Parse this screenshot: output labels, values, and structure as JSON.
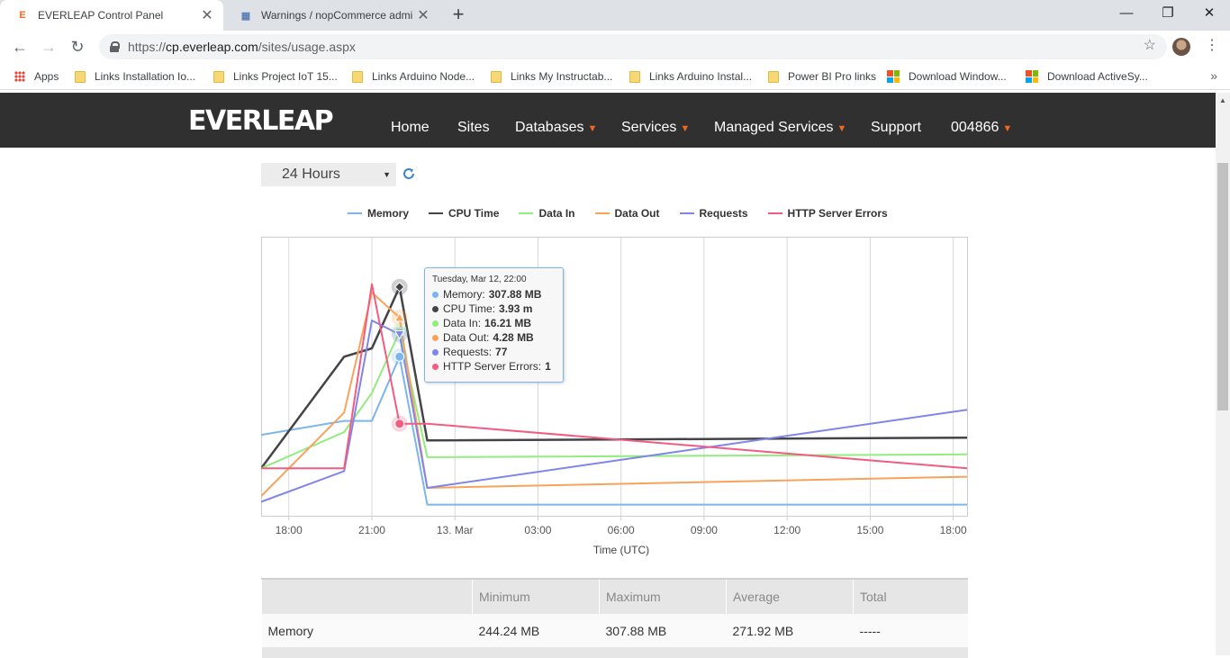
{
  "browser": {
    "tabs": [
      {
        "title": "EVERLEAP Control Panel",
        "active": true
      },
      {
        "title": "Warnings / nopCommerce admin",
        "active": false
      }
    ],
    "url": {
      "scheme": "https://",
      "host": "cp.everleap.com",
      "path": "/sites/usage.aspx"
    },
    "bookmarks": [
      {
        "label": "Apps",
        "icon": "apps-grid-icon"
      },
      {
        "label": "Links Installation Io...",
        "icon": "folder-icon"
      },
      {
        "label": "Links Project IoT 15...",
        "icon": "folder-icon"
      },
      {
        "label": "Links Arduino Node...",
        "icon": "folder-icon"
      },
      {
        "label": "Links My Instructab...",
        "icon": "folder-icon"
      },
      {
        "label": "Links Arduino Instal...",
        "icon": "folder-icon"
      },
      {
        "label": "Power BI Pro links",
        "icon": "folder-icon"
      },
      {
        "label": "Download Window...",
        "icon": "microsoft-icon"
      },
      {
        "label": "Download ActiveSy...",
        "icon": "microsoft-icon"
      }
    ]
  },
  "site": {
    "logo": "EVERLEAP",
    "nav": [
      {
        "label": "Home",
        "dropdown": false
      },
      {
        "label": "Sites",
        "dropdown": false
      },
      {
        "label": "Databases",
        "dropdown": true
      },
      {
        "label": "Services",
        "dropdown": true
      },
      {
        "label": "Managed Services",
        "dropdown": true
      },
      {
        "label": "Support",
        "dropdown": false
      },
      {
        "label": "004866",
        "dropdown": true
      }
    ],
    "accent": "#f26722"
  },
  "range_select": {
    "value": "24 Hours"
  },
  "chart_data": {
    "type": "line",
    "xlabel": "Time (UTC)",
    "x_ticks": [
      "18:00",
      "21:00",
      "13. Mar",
      "03:00",
      "06:00",
      "09:00",
      "12:00",
      "15:00",
      "18:00"
    ],
    "x_hours": [
      0,
      3,
      6,
      9,
      12,
      15,
      18,
      21,
      24
    ],
    "xlim_hours": [
      -1,
      24.5
    ],
    "ylim_norm": [
      0,
      1
    ],
    "grid": true,
    "legend_position": "top-center",
    "series": [
      {
        "name": "Memory",
        "color": "#7cb5ec",
        "points": [
          [
            -1,
            0.29
          ],
          [
            2,
            0.34
          ],
          [
            3,
            0.34
          ],
          [
            4,
            0.57
          ],
          [
            5,
            0.04
          ],
          [
            24.5,
            0.04
          ]
        ]
      },
      {
        "name": "CPU Time",
        "color": "#434348",
        "points": [
          [
            -1,
            0.17
          ],
          [
            2,
            0.57
          ],
          [
            3,
            0.6
          ],
          [
            4,
            0.82
          ],
          [
            5,
            0.27
          ],
          [
            24.5,
            0.28
          ]
        ]
      },
      {
        "name": "Data In",
        "color": "#90ed7d",
        "points": [
          [
            -1,
            0.17
          ],
          [
            2,
            0.3
          ],
          [
            3,
            0.44
          ],
          [
            4,
            0.66
          ],
          [
            5,
            0.21
          ],
          [
            24.5,
            0.22
          ]
        ]
      },
      {
        "name": "Data Out",
        "color": "#f7a35c",
        "points": [
          [
            -1,
            0.07
          ],
          [
            2,
            0.37
          ],
          [
            3,
            0.8
          ],
          [
            4,
            0.71
          ],
          [
            5,
            0.1
          ],
          [
            24.5,
            0.14
          ]
        ]
      },
      {
        "name": "Requests",
        "color": "#8085e9",
        "points": [
          [
            -1,
            0.05
          ],
          [
            2,
            0.16
          ],
          [
            3,
            0.7
          ],
          [
            4,
            0.65
          ],
          [
            5,
            0.1
          ],
          [
            24.5,
            0.38
          ]
        ]
      },
      {
        "name": "HTTP Server Errors",
        "color": "#f15c80",
        "points": [
          [
            -1,
            0.17
          ],
          [
            2,
            0.17
          ],
          [
            3,
            0.83
          ],
          [
            4,
            0.33
          ],
          [
            5,
            0.33
          ],
          [
            24.5,
            0.17
          ]
        ]
      }
    ],
    "tooltip": {
      "date": "Tuesday, Mar 12, 22:00",
      "x_hour": 4,
      "rows": [
        {
          "name": "Memory",
          "value": "307.88 MB",
          "color": "#7cb5ec"
        },
        {
          "name": "CPU Time",
          "value": "3.93 m",
          "color": "#434348"
        },
        {
          "name": "Data In",
          "value": "16.21 MB",
          "color": "#90ed7d"
        },
        {
          "name": "Data Out",
          "value": "4.28 MB",
          "color": "#f7a35c"
        },
        {
          "name": "Requests",
          "value": "77",
          "color": "#8085e9"
        },
        {
          "name": "HTTP Server Errors",
          "value": "1",
          "color": "#f15c80"
        }
      ]
    }
  },
  "stats_table": {
    "headers": [
      "",
      "Minimum",
      "Maximum",
      "Average",
      "Total"
    ],
    "rows": [
      {
        "metric": "Memory",
        "minimum": "244.24 MB",
        "maximum": "307.88 MB",
        "average": "271.92 MB",
        "total": "-----"
      }
    ]
  }
}
